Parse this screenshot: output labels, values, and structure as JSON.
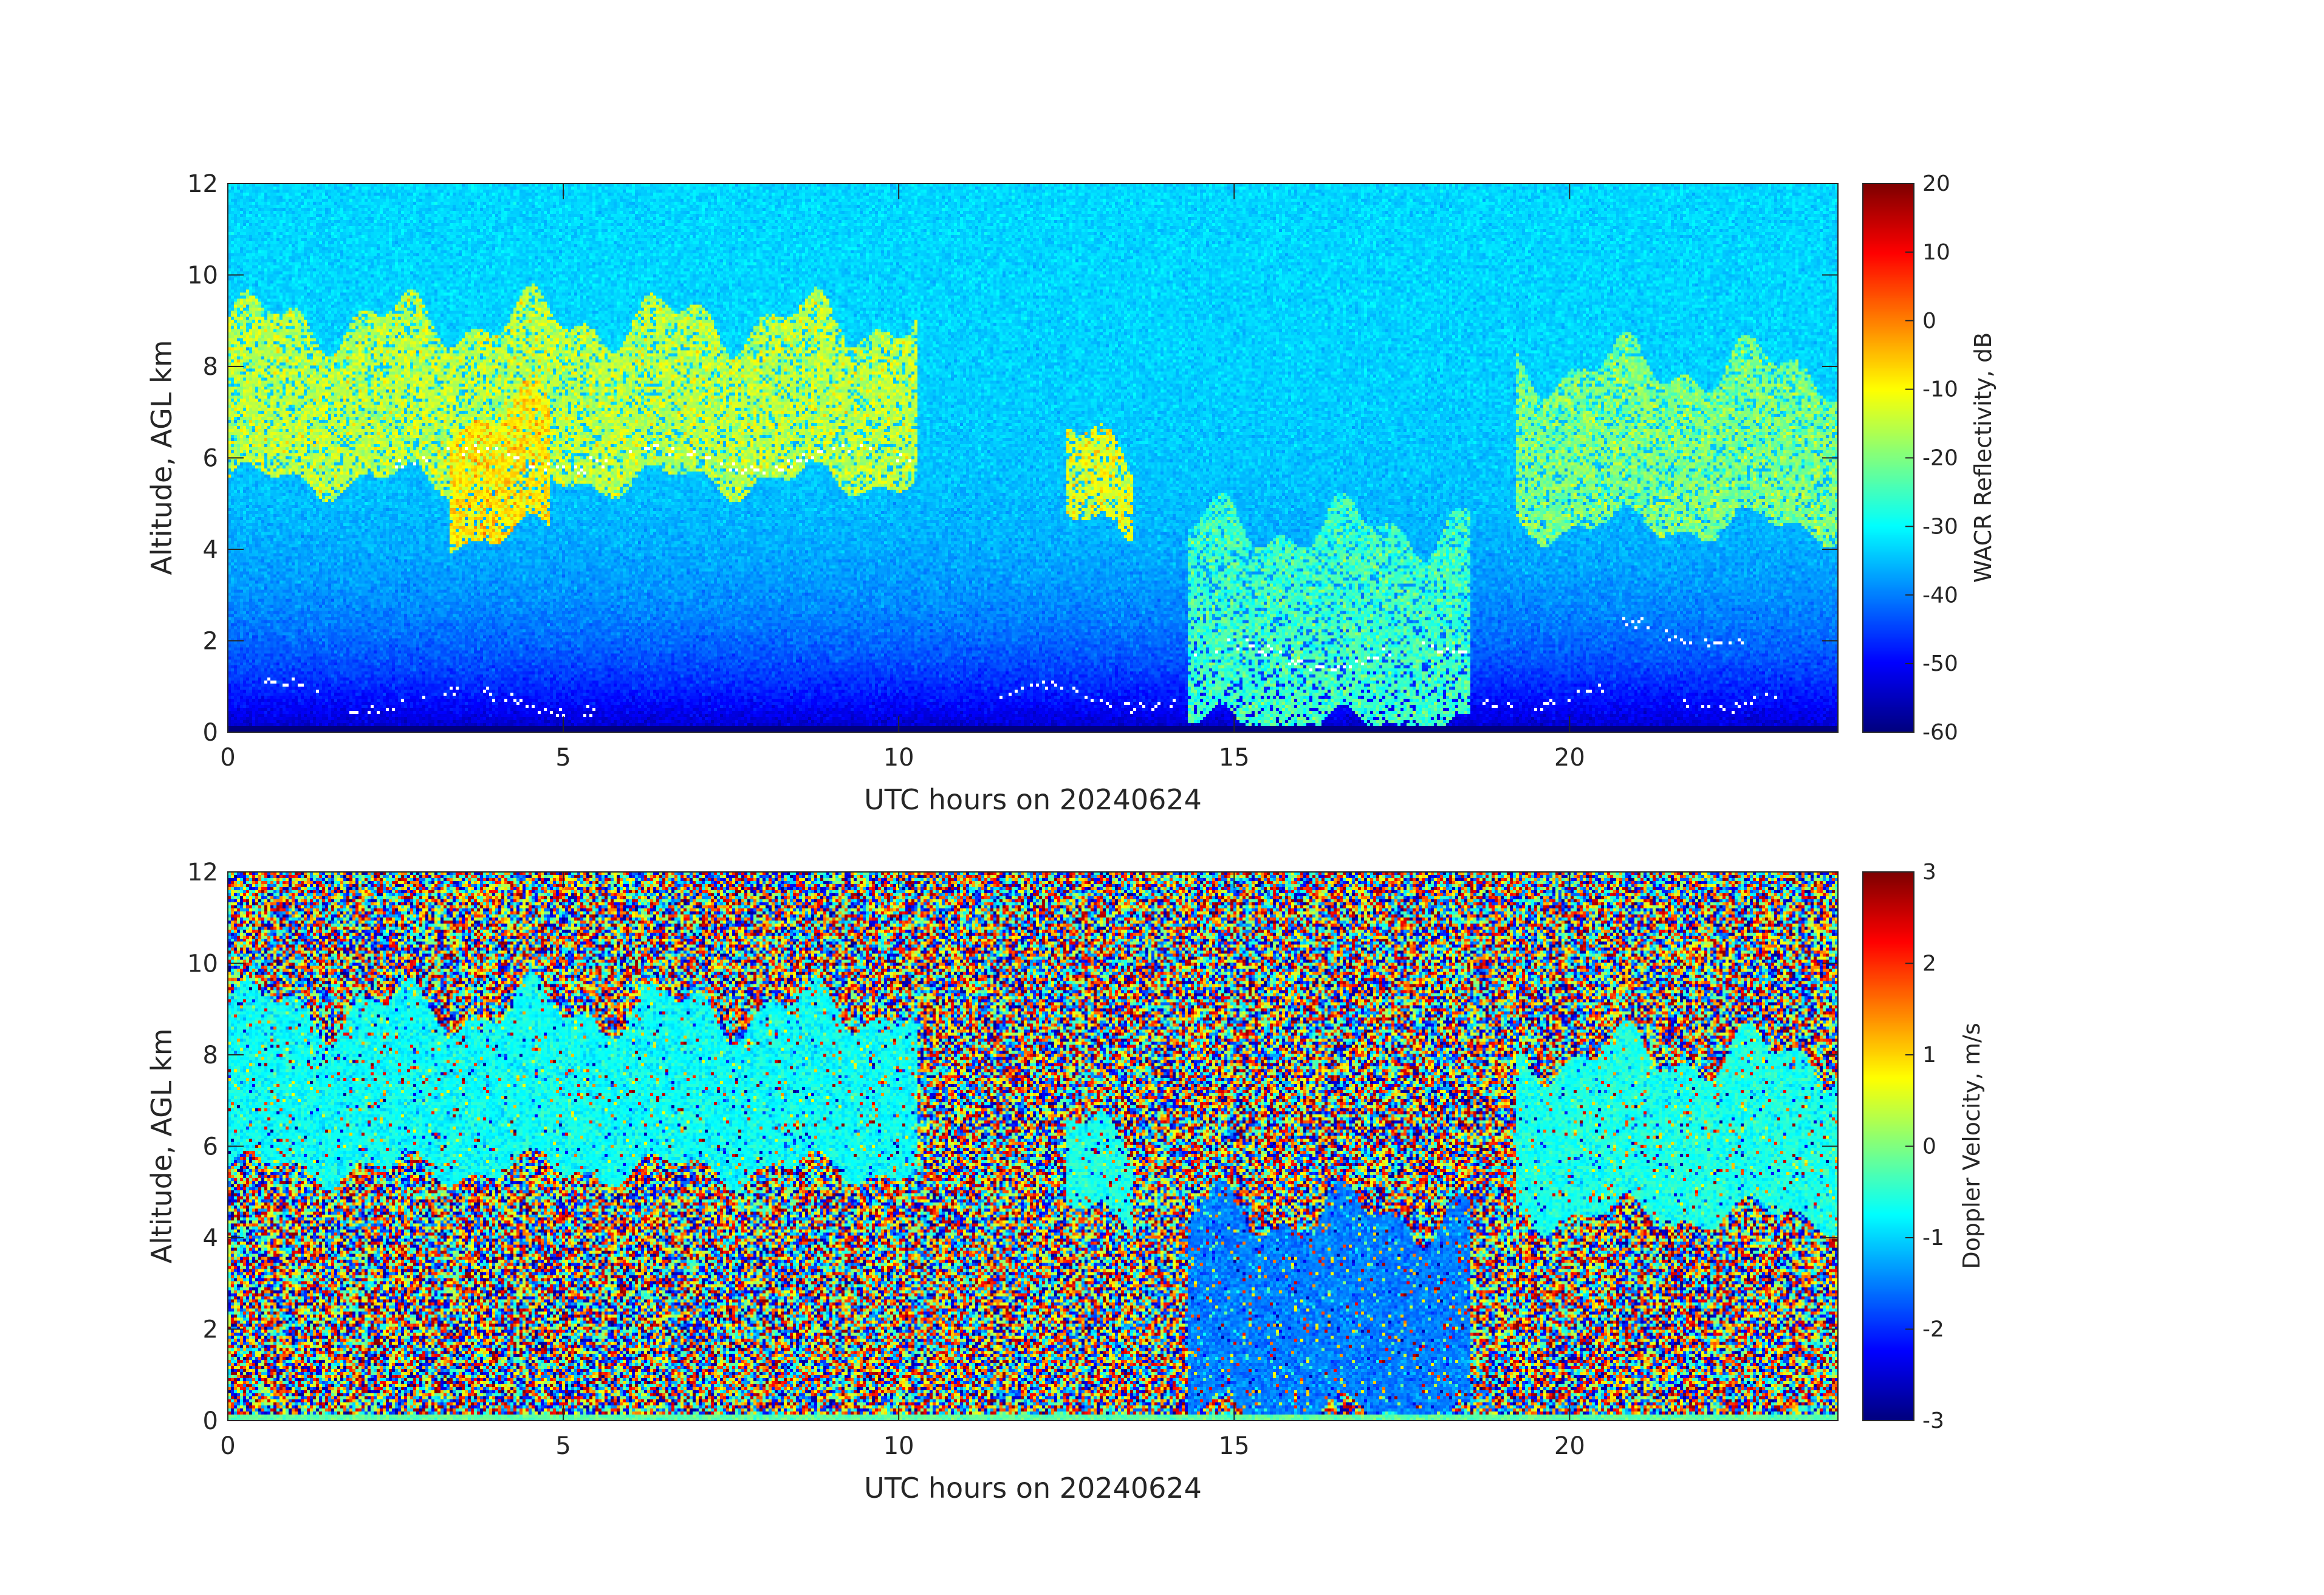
{
  "chart_data": [
    {
      "type": "heatmap",
      "variable": "WACR Reflectivity",
      "xlabel": "UTC hours on 20240624",
      "ylabel": "Altitude, AGL km",
      "xlim": [
        0,
        24
      ],
      "ylim": [
        0,
        12
      ],
      "xticks": [
        0,
        5,
        10,
        15,
        20
      ],
      "yticks": [
        0,
        2,
        4,
        6,
        8,
        10,
        12
      ],
      "colorbar": {
        "label": "WACR Reflectivity, dB",
        "colormap": "jet",
        "range": [
          -60,
          20
        ],
        "ticks": [
          20,
          10,
          0,
          -10,
          -20,
          -30,
          -40,
          -50,
          -60
        ]
      },
      "background_noise": {
        "description_value_db": -33,
        "low_altitude_value_db": -55
      },
      "features": [
        {
          "t": [
            0.0,
            10.3
          ],
          "base_km": 5.5,
          "top_km": 9.0,
          "value_db": -15
        },
        {
          "t": [
            3.3,
            4.8
          ],
          "base_km": 4.3,
          "top_km": 7.0,
          "value_db": -8
        },
        {
          "t": [
            12.5,
            13.5
          ],
          "base_km": 4.5,
          "top_km": 6.3,
          "value_db": -12
        },
        {
          "t": [
            14.3,
            18.5
          ],
          "base_km": 0.15,
          "top_km": 4.5,
          "value_db": -25
        },
        {
          "t": [
            19.2,
            24.0
          ],
          "base_km": 4.5,
          "top_km": 8.0,
          "value_db": -20
        }
      ],
      "cloud_base_markers": {
        "color": "#ffffff"
      }
    },
    {
      "type": "heatmap",
      "variable": "Doppler Velocity",
      "xlabel": "UTC hours on 20240624",
      "ylabel": "Altitude, AGL km",
      "xlim": [
        0,
        24
      ],
      "ylim": [
        0,
        12
      ],
      "xticks": [
        0,
        5,
        10,
        15,
        20
      ],
      "yticks": [
        0,
        2,
        4,
        6,
        8,
        10,
        12
      ],
      "colorbar": {
        "label": "Doppler Velocity, m/s",
        "colormap": "jet",
        "range": [
          -3,
          3
        ],
        "ticks": [
          3,
          2,
          1,
          0,
          -1,
          -2,
          -3
        ]
      },
      "features": [
        {
          "t": [
            0.0,
            10.3
          ],
          "base_km": 5.5,
          "top_km": 9.0,
          "value_ms": -0.7
        },
        {
          "t": [
            12.5,
            13.5
          ],
          "base_km": 4.5,
          "top_km": 6.3,
          "value_ms": -0.6
        },
        {
          "t": [
            14.3,
            18.5
          ],
          "base_km": 0.15,
          "top_km": 4.5,
          "value_ms": -1.5
        },
        {
          "t": [
            19.2,
            24.0
          ],
          "base_km": 4.5,
          "top_km": 8.0,
          "value_ms": -0.6
        }
      ]
    }
  ]
}
